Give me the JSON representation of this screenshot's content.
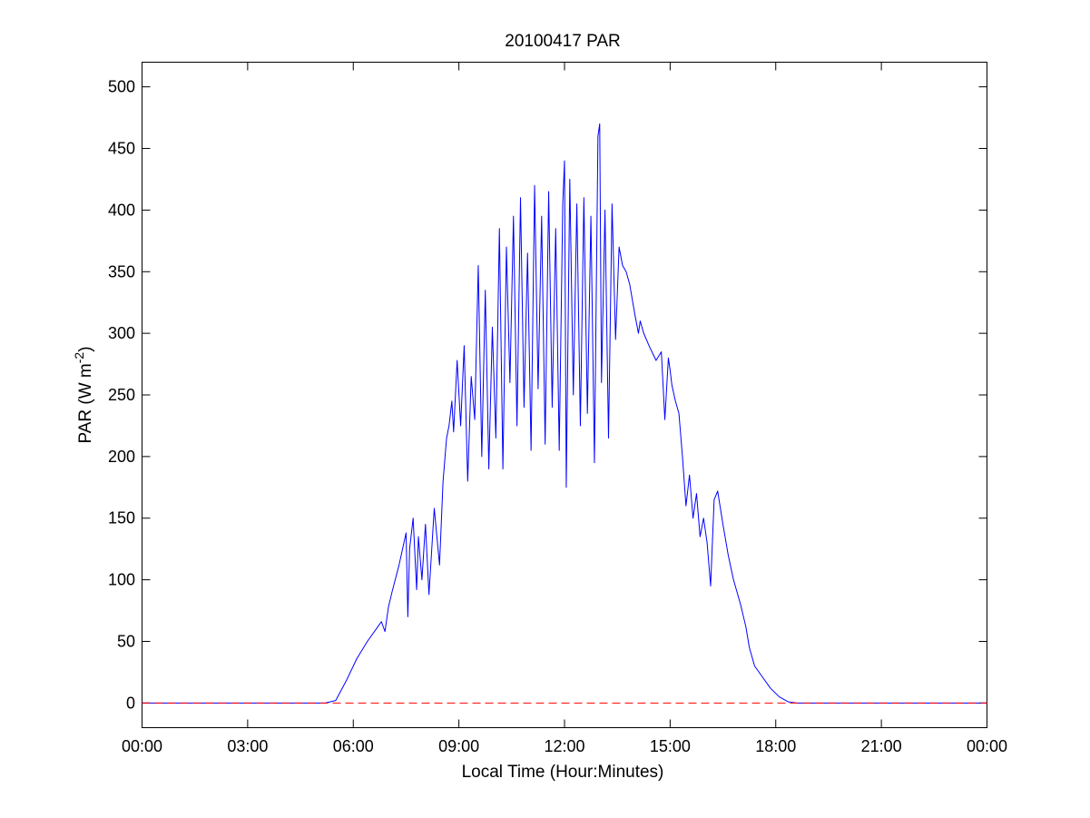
{
  "chart_data": {
    "type": "line",
    "title": "20100417 PAR",
    "xlabel": "Local Time (Hour:Minutes)",
    "ylabel": {
      "text": "PAR (W m",
      "superscript": "-2",
      "suffix": ")"
    },
    "xlim": [
      0,
      24
    ],
    "ylim": [
      -20,
      520
    ],
    "x_ticks": [
      0,
      3,
      6,
      9,
      12,
      15,
      18,
      21,
      24
    ],
    "x_tick_labels": [
      "00:00",
      "03:00",
      "06:00",
      "09:00",
      "12:00",
      "15:00",
      "18:00",
      "21:00",
      "00:00"
    ],
    "y_ticks": [
      0,
      50,
      100,
      150,
      200,
      250,
      300,
      350,
      400,
      450,
      500
    ],
    "y_tick_labels": [
      "0",
      "50",
      "100",
      "150",
      "200",
      "250",
      "300",
      "350",
      "400",
      "450",
      "500"
    ],
    "grid": false,
    "series": [
      {
        "color": "#0000ff",
        "style": "solid",
        "x": [
          0,
          5.2,
          5.5,
          5.8,
          6.1,
          6.4,
          6.7,
          6.8,
          6.9,
          7.0,
          7.1,
          7.3,
          7.5,
          7.55,
          7.6,
          7.7,
          7.8,
          7.85,
          7.95,
          8.05,
          8.15,
          8.3,
          8.45,
          8.55,
          8.65,
          8.72,
          8.8,
          8.85,
          8.95,
          9.05,
          9.15,
          9.25,
          9.35,
          9.45,
          9.55,
          9.65,
          9.75,
          9.85,
          9.95,
          10.05,
          10.15,
          10.25,
          10.35,
          10.45,
          10.55,
          10.65,
          10.75,
          10.85,
          10.95,
          11.05,
          11.15,
          11.25,
          11.35,
          11.45,
          11.55,
          11.65,
          11.75,
          11.85,
          11.95,
          12.0,
          12.05,
          12.15,
          12.25,
          12.35,
          12.45,
          12.55,
          12.65,
          12.75,
          12.85,
          12.95,
          13.0,
          13.05,
          13.15,
          13.25,
          13.35,
          13.45,
          13.55,
          13.65,
          13.75,
          13.85,
          14.0,
          14.1,
          14.15,
          14.25,
          14.4,
          14.6,
          14.75,
          14.85,
          14.95,
          15.0,
          15.05,
          15.15,
          15.25,
          15.35,
          15.45,
          15.55,
          15.65,
          15.75,
          15.85,
          15.95,
          16.05,
          16.15,
          16.25,
          16.35,
          16.5,
          16.65,
          16.8,
          17.0,
          17.15,
          17.25,
          17.4,
          17.6,
          17.85,
          18.1,
          18.35,
          18.6,
          18.8,
          24
        ],
        "values": [
          0,
          0,
          2,
          18,
          36,
          50,
          62,
          66,
          58,
          78,
          90,
          112,
          138,
          70,
          125,
          150,
          92,
          135,
          100,
          145,
          88,
          158,
          112,
          180,
          215,
          225,
          245,
          220,
          278,
          225,
          290,
          180,
          265,
          230,
          355,
          200,
          335,
          190,
          305,
          215,
          385,
          190,
          370,
          260,
          395,
          225,
          410,
          240,
          365,
          205,
          420,
          255,
          395,
          210,
          415,
          240,
          385,
          205,
          405,
          440,
          175,
          425,
          250,
          405,
          225,
          410,
          235,
          395,
          195,
          460,
          470,
          260,
          400,
          215,
          405,
          295,
          370,
          355,
          350,
          340,
          315,
          300,
          310,
          300,
          290,
          278,
          285,
          230,
          280,
          270,
          258,
          245,
          235,
          200,
          160,
          185,
          150,
          170,
          135,
          150,
          130,
          95,
          165,
          172,
          145,
          120,
          100,
          80,
          62,
          45,
          30,
          22,
          12,
          5,
          1,
          0,
          0,
          0
        ]
      },
      {
        "color": "#ff0000",
        "style": "dashed",
        "x": [
          0,
          24
        ],
        "values": [
          0,
          0
        ]
      }
    ]
  }
}
